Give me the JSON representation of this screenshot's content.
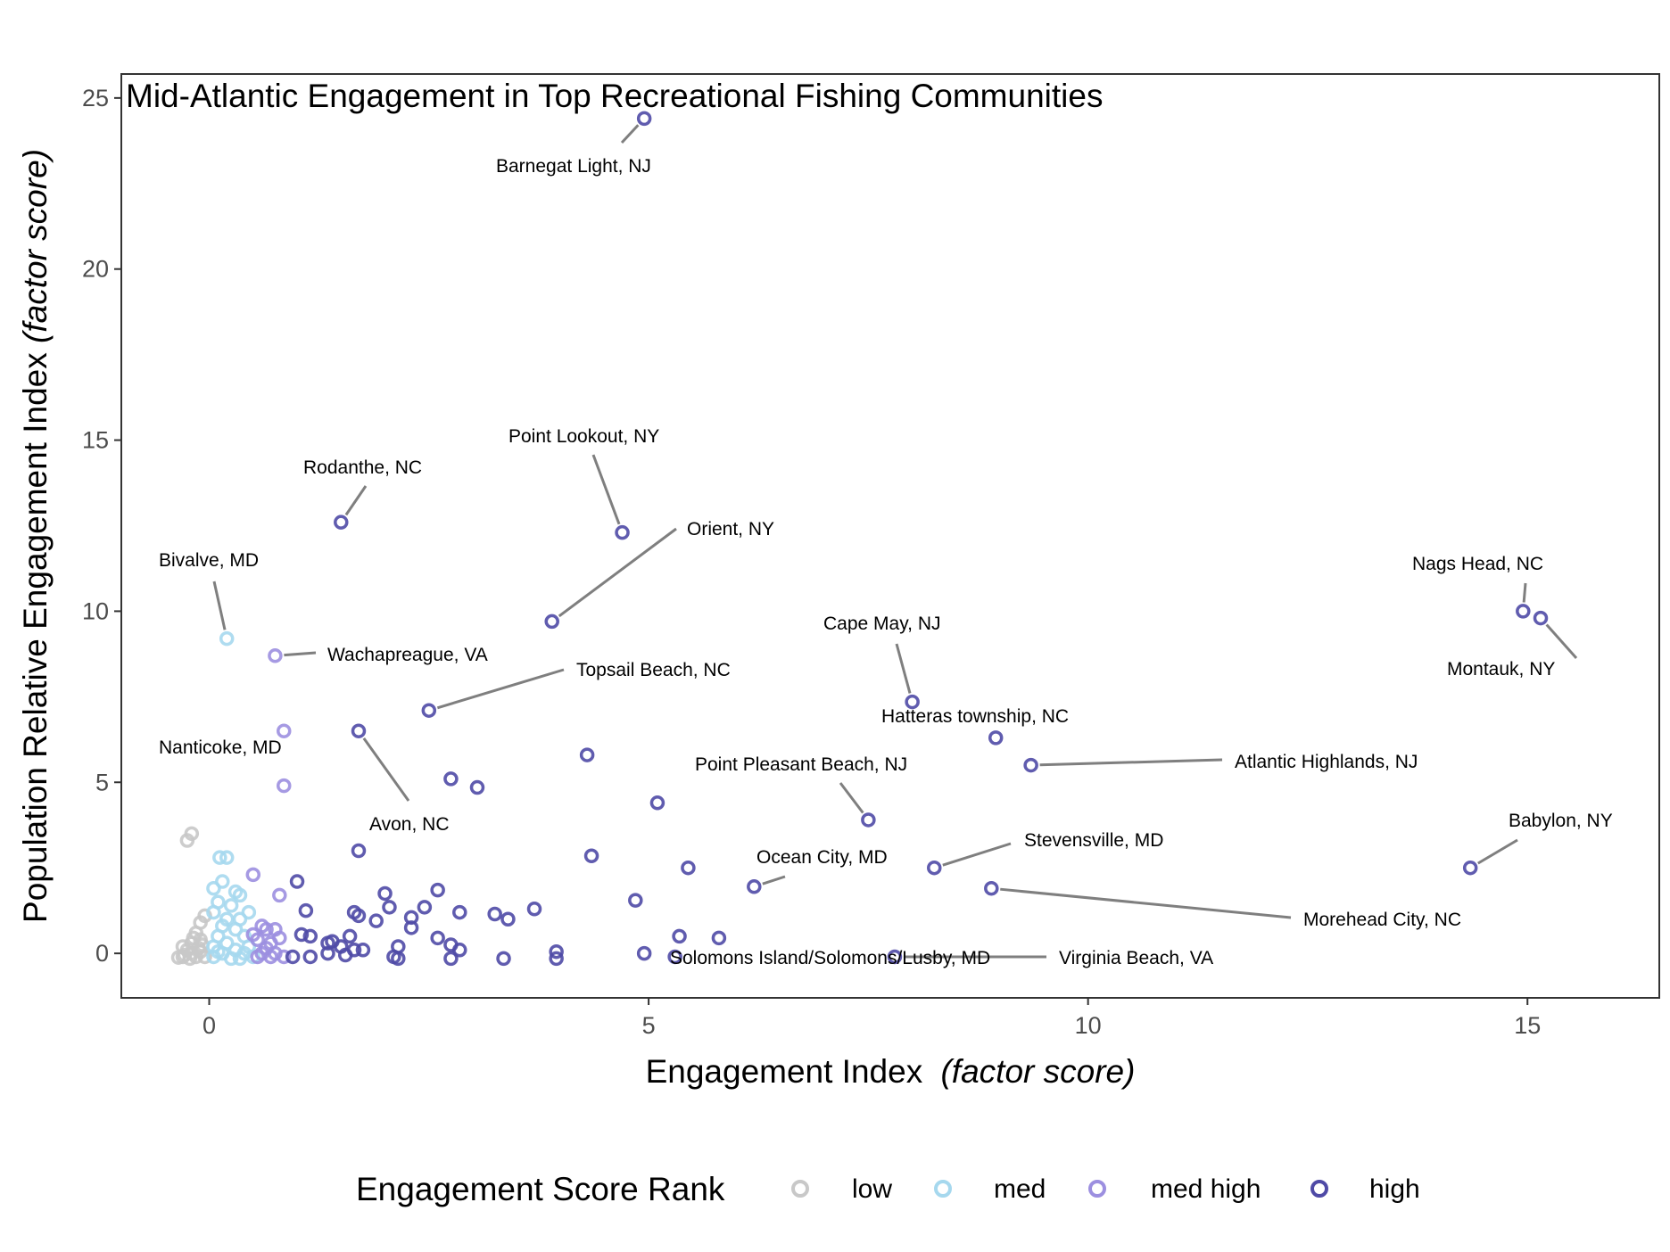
{
  "chart_data": {
    "type": "scatter",
    "title": "Mid-Atlantic Engagement in Top Recreational Fishing Communities",
    "xlabel": "Engagement Index",
    "xlabel_italic": "(factor score)",
    "ylabel": "Population Relative Engagement Index",
    "ylabel_italic": "(factor score)",
    "xlim": [
      -1,
      16.5
    ],
    "ylim": [
      -1.3,
      25.7
    ],
    "x_ticks": [
      0,
      5,
      10,
      15
    ],
    "y_ticks": [
      0,
      5,
      10,
      15,
      20,
      25
    ],
    "grid": false,
    "legend": {
      "title": "Engagement Score Rank",
      "position": "bottom",
      "entries": [
        {
          "key": "low",
          "label": "low",
          "color": "#c8c8c8"
        },
        {
          "key": "med",
          "label": "med",
          "color": "#a6d8ee"
        },
        {
          "key": "medhigh",
          "label": "med high",
          "color": "#9c8fe0"
        },
        {
          "key": "high",
          "label": "high",
          "color": "#4f4aa6"
        }
      ]
    },
    "series": [
      {
        "name": "low",
        "points": [
          [
            -0.2,
            3.5
          ],
          [
            -0.25,
            3.3
          ],
          [
            -0.05,
            1.1
          ],
          [
            -0.1,
            0.9
          ],
          [
            -0.15,
            0.6
          ],
          [
            -0.1,
            0.4
          ],
          [
            -0.2,
            0.3
          ],
          [
            -0.3,
            0.2
          ],
          [
            -0.25,
            0.1
          ],
          [
            -0.2,
            0
          ],
          [
            -0.3,
            -0.1
          ],
          [
            -0.15,
            -0.1
          ],
          [
            -0.1,
            0.05
          ],
          [
            -0.28,
            -0.05
          ],
          [
            -0.35,
            -0.12
          ],
          [
            -0.05,
            -0.1
          ],
          [
            -0.18,
            0.45
          ],
          [
            -0.08,
            0.25
          ],
          [
            -0.22,
            -0.15
          ],
          [
            -0.12,
            0.15
          ]
        ]
      },
      {
        "name": "med",
        "points": [
          [
            0.2,
            9.2
          ],
          [
            0.12,
            2.8
          ],
          [
            0.2,
            2.8
          ],
          [
            0.15,
            2.1
          ],
          [
            0.05,
            1.9
          ],
          [
            0.3,
            1.8
          ],
          [
            0.35,
            1.7
          ],
          [
            0.1,
            1.5
          ],
          [
            0.25,
            1.4
          ],
          [
            0.05,
            1.2
          ],
          [
            0.2,
            1.0
          ],
          [
            0.35,
            1.0
          ],
          [
            0.45,
            1.2
          ],
          [
            0.15,
            0.8
          ],
          [
            0.3,
            0.7
          ],
          [
            0.1,
            0.5
          ],
          [
            0.4,
            0.5
          ],
          [
            0.2,
            0.3
          ],
          [
            0.05,
            0.2
          ],
          [
            0.3,
            0.1
          ],
          [
            0.15,
            0
          ],
          [
            0.4,
            0
          ],
          [
            0.05,
            -0.1
          ],
          [
            0.25,
            -0.15
          ],
          [
            0.5,
            -0.1
          ],
          [
            0.35,
            -0.15
          ],
          [
            0.45,
            0.2
          ],
          [
            0.1,
            0.05
          ]
        ]
      },
      {
        "name": "med high",
        "points": [
          [
            0.75,
            8.7
          ],
          [
            0.85,
            6.5
          ],
          [
            0.85,
            4.9
          ],
          [
            0.5,
            2.3
          ],
          [
            0.8,
            1.7
          ],
          [
            0.6,
            0.8
          ],
          [
            0.65,
            0.7
          ],
          [
            0.75,
            0.7
          ],
          [
            0.55,
            0.4
          ],
          [
            0.7,
            0.3
          ],
          [
            0.65,
            0.15
          ],
          [
            0.6,
            0
          ],
          [
            0.75,
            0
          ],
          [
            0.55,
            -0.1
          ],
          [
            0.85,
            -0.1
          ],
          [
            0.7,
            -0.1
          ],
          [
            0.5,
            0.55
          ],
          [
            0.8,
            0.45
          ]
        ]
      },
      {
        "name": "high",
        "points": [
          [
            4.95,
            24.4
          ],
          [
            1.5,
            12.6
          ],
          [
            4.7,
            12.3
          ],
          [
            3.9,
            9.7
          ],
          [
            2.5,
            7.1
          ],
          [
            1.7,
            6.5
          ],
          [
            2.75,
            5.1
          ],
          [
            3.05,
            4.85
          ],
          [
            4.3,
            5.8
          ],
          [
            5.1,
            4.4
          ],
          [
            1.7,
            3.0
          ],
          [
            4.35,
            2.85
          ],
          [
            5.45,
            2.5
          ],
          [
            4.85,
            1.55
          ],
          [
            1.0,
            2.1
          ],
          [
            1.1,
            1.25
          ],
          [
            2.0,
            1.75
          ],
          [
            2.05,
            1.35
          ],
          [
            1.65,
            1.2
          ],
          [
            1.7,
            1.1
          ],
          [
            1.9,
            0.95
          ],
          [
            2.3,
            1.05
          ],
          [
            2.45,
            1.35
          ],
          [
            2.6,
            1.85
          ],
          [
            2.85,
            1.2
          ],
          [
            3.25,
            1.15
          ],
          [
            3.4,
            1.0
          ],
          [
            3.7,
            1.3
          ],
          [
            2.3,
            0.75
          ],
          [
            1.05,
            0.55
          ],
          [
            1.15,
            0.5
          ],
          [
            1.4,
            0.35
          ],
          [
            1.6,
            0.5
          ],
          [
            1.35,
            0.3
          ],
          [
            1.5,
            0.2
          ],
          [
            1.65,
            0.1
          ],
          [
            2.15,
            0.2
          ],
          [
            2.6,
            0.45
          ],
          [
            2.75,
            0.25
          ],
          [
            2.85,
            0.1
          ],
          [
            5.35,
            0.5
          ],
          [
            5.8,
            0.45
          ],
          [
            0.95,
            -0.1
          ],
          [
            1.15,
            -0.1
          ],
          [
            1.35,
            0
          ],
          [
            1.55,
            -0.05
          ],
          [
            1.75,
            0.1
          ],
          [
            2.1,
            -0.1
          ],
          [
            2.15,
            -0.15
          ],
          [
            2.75,
            -0.15
          ],
          [
            3.35,
            -0.15
          ],
          [
            3.95,
            0.05
          ],
          [
            3.95,
            -0.15
          ],
          [
            4.95,
            0
          ],
          [
            5.3,
            -0.1
          ],
          [
            6.2,
            1.95
          ],
          [
            7.5,
            3.9
          ],
          [
            8.0,
            7.35
          ],
          [
            8.95,
            6.3
          ],
          [
            9.35,
            5.5
          ],
          [
            8.25,
            2.5
          ],
          [
            8.9,
            1.9
          ],
          [
            7.8,
            -0.1
          ],
          [
            14.95,
            10.0
          ],
          [
            15.15,
            9.8
          ],
          [
            14.35,
            2.5
          ]
        ]
      }
    ],
    "annotations": [
      {
        "label": "Barnegat Light, NJ",
        "x": 4.95,
        "y": 24.4
      },
      {
        "label": "Rodanthe, NC",
        "x": 1.5,
        "y": 12.6
      },
      {
        "label": "Point Lookout, NY",
        "x": 4.7,
        "y": 12.3
      },
      {
        "label": "Orient, NY",
        "x": 3.9,
        "y": 9.7
      },
      {
        "label": "Bivalve, MD",
        "x": 0.2,
        "y": 9.2
      },
      {
        "label": "Wachapreague, VA",
        "x": 0.75,
        "y": 8.7
      },
      {
        "label": "Topsail Beach, NC",
        "x": 2.5,
        "y": 7.1
      },
      {
        "label": "Nanticoke, MD",
        "x": 0.85,
        "y": 6.5
      },
      {
        "label": "Avon, NC",
        "x": 1.7,
        "y": 6.5
      },
      {
        "label": "Cape May, NJ",
        "x": 8.0,
        "y": 7.35
      },
      {
        "label": "Hatteras township, NC",
        "x": 8.95,
        "y": 6.3
      },
      {
        "label": "Atlantic Highlands, NJ",
        "x": 9.35,
        "y": 5.5
      },
      {
        "label": "Point Pleasant Beach, NJ",
        "x": 7.5,
        "y": 3.9
      },
      {
        "label": "Ocean City, MD",
        "x": 6.2,
        "y": 1.95
      },
      {
        "label": "Stevensville, MD",
        "x": 8.25,
        "y": 2.5
      },
      {
        "label": "Morehead City, NC",
        "x": 8.9,
        "y": 1.9
      },
      {
        "label": "Solomons Island/Solomons/Lusby, MD",
        "x": 5.3,
        "y": -0.1
      },
      {
        "label": "Virginia Beach, VA",
        "x": 7.8,
        "y": -0.1
      },
      {
        "label": "Nags Head, NC",
        "x": 14.95,
        "y": 10.0
      },
      {
        "label": "Montauk, NY",
        "x": 15.15,
        "y": 9.8
      },
      {
        "label": "Babylon, NY",
        "x": 14.35,
        "y": 2.5
      }
    ]
  }
}
